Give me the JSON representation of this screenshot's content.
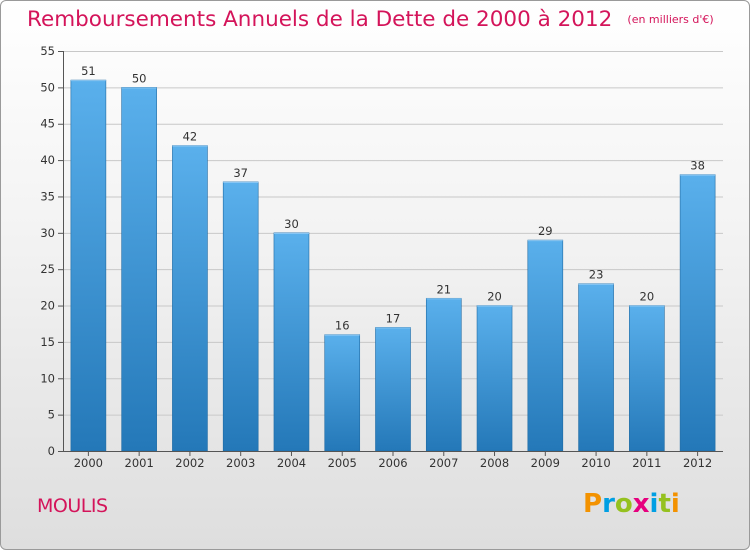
{
  "header": {
    "title": "Remboursements Annuels de la Dette de 2000 à 2012",
    "subtitle": "(en milliers d'€)"
  },
  "commune": "MOULIS",
  "logo": {
    "text": "Proxiti",
    "letters": [
      {
        "ch": "P",
        "color": "#f39200"
      },
      {
        "ch": "r",
        "color": "#009fe3"
      },
      {
        "ch": "o",
        "color": "#95c11f"
      },
      {
        "ch": "x",
        "color": "#e6007e"
      },
      {
        "ch": "i",
        "color": "#009fe3"
      },
      {
        "ch": "t",
        "color": "#95c11f"
      },
      {
        "ch": "i",
        "color": "#f39200"
      }
    ]
  },
  "colors": {
    "accent": "#d4145a",
    "bar_top": "#5ab0ec",
    "bar_bottom": "#2478b8"
  },
  "chart_data": {
    "type": "bar",
    "categories": [
      "2000",
      "2001",
      "2002",
      "2003",
      "2004",
      "2005",
      "2006",
      "2007",
      "2008",
      "2009",
      "2010",
      "2011",
      "2012"
    ],
    "values": [
      51,
      50,
      42,
      37,
      30,
      16,
      17,
      21,
      20,
      29,
      23,
      20,
      38
    ],
    "ylim": [
      0,
      55
    ],
    "yticks": [
      0,
      5,
      10,
      15,
      20,
      25,
      30,
      35,
      40,
      45,
      50,
      55
    ],
    "grid": true,
    "legend": "none"
  }
}
